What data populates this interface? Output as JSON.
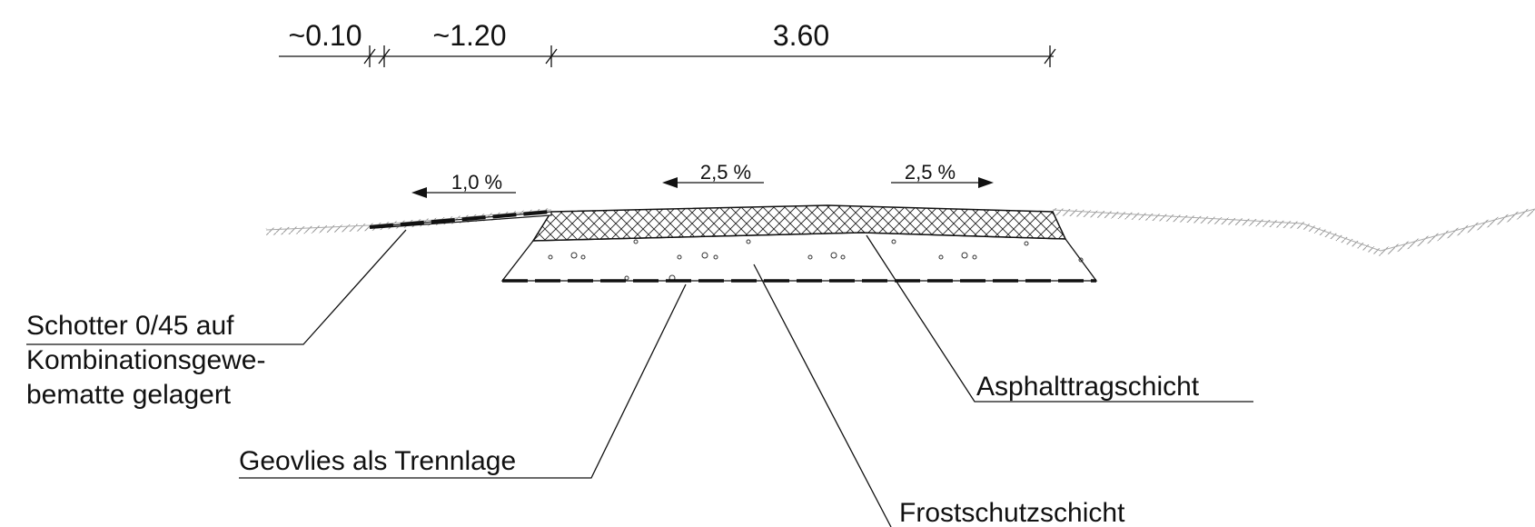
{
  "dimensions": [
    "~0.10",
    "~1.20",
    "3.60"
  ],
  "slopes": [
    "1,0 %",
    "2,5 %",
    "2,5 %"
  ],
  "labels": {
    "schotter": [
      "Schotter 0/45 auf",
      "Kombinationsgewe-",
      "bematte gelagert"
    ],
    "geovlies": "Geovlies als Trennlage",
    "asphalt": "Asphalttragschicht",
    "frost": "Frostschutzschicht"
  }
}
